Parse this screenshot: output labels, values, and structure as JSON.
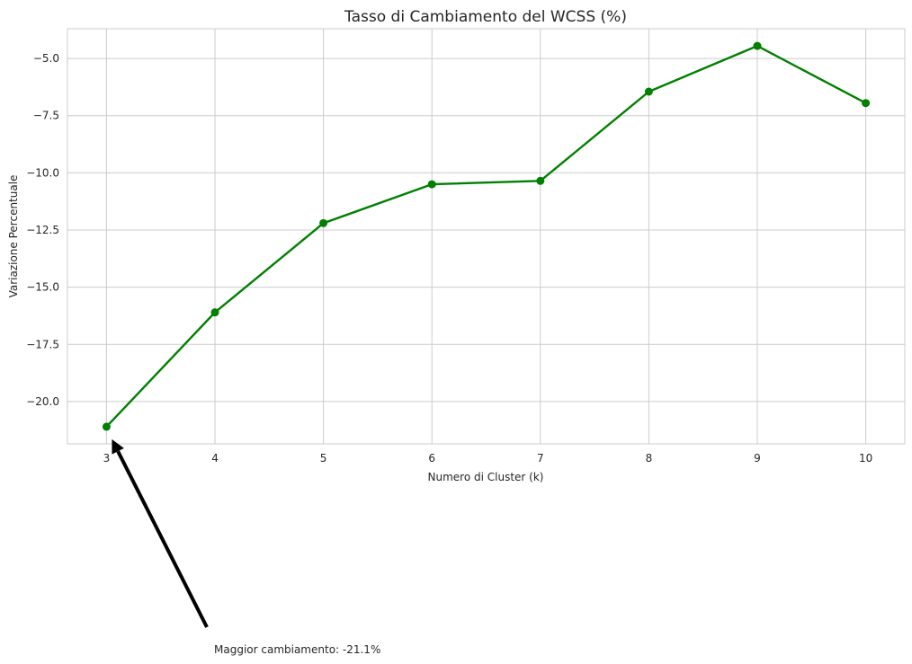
{
  "chart_data": {
    "type": "line",
    "title": "Tasso di Cambiamento del WCSS (%)",
    "xlabel": "Numero di Cluster (k)",
    "ylabel": "Variazione Percentuale",
    "x": [
      3,
      4,
      5,
      6,
      7,
      8,
      9,
      10
    ],
    "x_tick_labels": [
      "3",
      "4",
      "5",
      "6",
      "7",
      "8",
      "9",
      "10"
    ],
    "y_ticks": [
      -20.0,
      -17.5,
      -15.0,
      -12.5,
      -10.0,
      -7.5,
      -5.0
    ],
    "y_tick_labels": [
      "−20.0",
      "−17.5",
      "−15.0",
      "−12.5",
      "−10.0",
      "−7.5",
      "−5.0"
    ],
    "series": [
      {
        "values": [
          -21.1,
          -16.1,
          -12.2,
          -10.5,
          -10.35,
          -6.45,
          -4.45,
          -6.95
        ],
        "color": "#008000"
      }
    ],
    "xlim": [
      2.64,
      10.36
    ],
    "ylim": [
      -21.85,
      -3.7
    ],
    "grid": true,
    "annotation": {
      "text": "Maggior cambiamento: -21.1%",
      "x": 3,
      "y": -21.1,
      "arrow_color": "#000000"
    }
  }
}
